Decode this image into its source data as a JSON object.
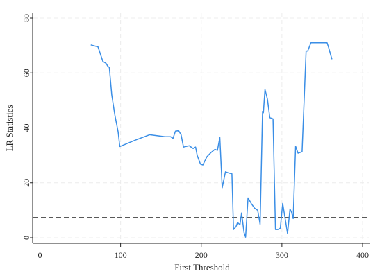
{
  "chart_data": {
    "type": "line",
    "xlabel": "First Threshold",
    "ylabel": "LR Statistics",
    "xlim": [
      0,
      400
    ],
    "ylim": [
      0,
      80
    ],
    "x_ticks": [
      0,
      100,
      200,
      300,
      400
    ],
    "y_ticks": [
      0,
      20,
      40,
      60,
      80
    ],
    "grid": true,
    "colors": {
      "series": "#3a8ee6",
      "reference": "#222222"
    },
    "reference_line": {
      "y": 7.35,
      "style": "dashed"
    },
    "series": [
      {
        "x": [
          63,
          72,
          78,
          82,
          84,
          86,
          89,
          93,
          97,
          99,
          118,
          136,
          155,
          162,
          165,
          168,
          172,
          175,
          178,
          185,
          190,
          193,
          195,
          199,
          202,
          207,
          212,
          217,
          220,
          223,
          226,
          230,
          235,
          238,
          240,
          243,
          245,
          248,
          250,
          253,
          255,
          258,
          262,
          266,
          270,
          273,
          276,
          277,
          279,
          282,
          285,
          287,
          289,
          292,
          295,
          298,
          301,
          304,
          307,
          310,
          312,
          314,
          317,
          320,
          325,
          330,
          332,
          336,
          340,
          348,
          356,
          358,
          360,
          362
        ],
        "y": [
          70.2,
          69.5,
          64.2,
          63.5,
          62.5,
          62.0,
          52.0,
          44.5,
          38.5,
          33.2,
          35.5,
          37.5,
          36.8,
          36.8,
          36.2,
          38.8,
          39.0,
          37.5,
          33.0,
          33.5,
          32.5,
          33.0,
          30.0,
          26.8,
          26.5,
          29.5,
          31.0,
          32.2,
          31.8,
          36.5,
          18.2,
          24.0,
          23.5,
          23.3,
          3.0,
          4.0,
          5.5,
          4.8,
          9.0,
          2.0,
          0.2,
          14.5,
          12.5,
          10.8,
          10.0,
          4.9,
          46.0,
          45.5,
          54.0,
          50.5,
          43.7,
          43.5,
          43.3,
          3.0,
          3.0,
          3.5,
          12.5,
          7.0,
          1.5,
          10.5,
          9.2,
          7.0,
          33.3,
          30.8,
          31.3,
          68.0,
          68.0,
          71.0,
          71.0,
          71.0,
          71.0,
          69.2,
          67.0,
          65.0
        ]
      }
    ]
  }
}
